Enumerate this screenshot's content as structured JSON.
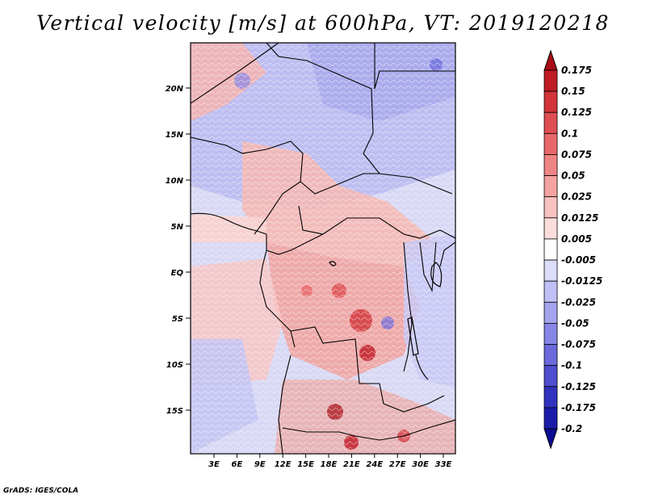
{
  "title": "Vertical velocity [m/s] at 600hPa, VT: 2019120218",
  "credit": "GrADS: IGES/COLA",
  "map": {
    "lat_labels": [
      "20N",
      "15N",
      "10N",
      "5N",
      "EQ",
      "5S",
      "10S",
      "15S"
    ],
    "lon_labels": [
      "3E",
      "6E",
      "9E",
      "12E",
      "15E",
      "18E",
      "21E",
      "24E",
      "27E",
      "30E",
      "33E"
    ],
    "lon_range": [
      0,
      35
    ],
    "lat_range": [
      -20,
      24
    ]
  },
  "colorbar": {
    "labels": [
      "0.175",
      "0.15",
      "0.125",
      "0.1",
      "0.075",
      "0.05",
      "0.025",
      "0.0125",
      "0.005",
      "-0.005",
      "-0.0125",
      "-0.025",
      "-0.05",
      "-0.075",
      "-0.1",
      "-0.125",
      "-0.175",
      "-0.2"
    ],
    "colors": [
      "#a80c14",
      "#c01c24",
      "#d2343a",
      "#de4e52",
      "#e8686a",
      "#ef8584",
      "#f4a3a2",
      "#f8c2c0",
      "#fbdedc",
      "#ffffff",
      "#dcdcfb",
      "#c0c0f6",
      "#a3a3ee",
      "#8686e6",
      "#6a6adc",
      "#4e4ed0",
      "#3232c0",
      "#1c1caa",
      "#0c0c94"
    ]
  }
}
